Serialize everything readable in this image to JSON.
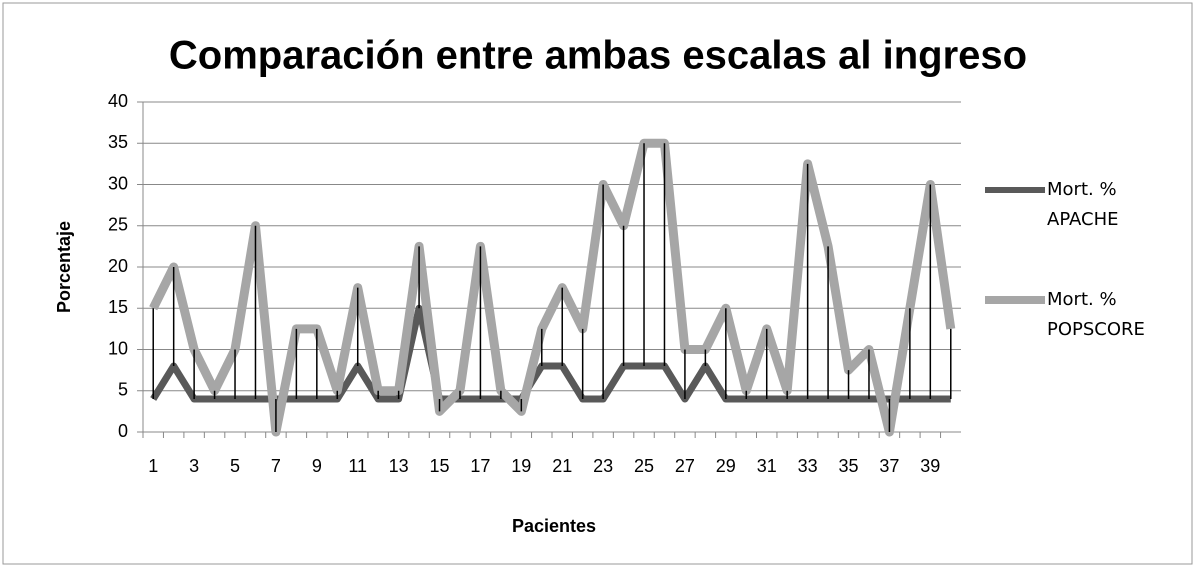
{
  "chart_data": {
    "type": "line",
    "title": "Comparación entre ambas escalas al ingreso",
    "x_label": "Pacientes",
    "y_label": "Porcentaje",
    "categories": [
      1,
      null,
      3,
      null,
      5,
      null,
      7,
      null,
      9,
      null,
      11,
      null,
      13,
      null,
      15,
      null,
      17,
      null,
      19,
      null,
      21,
      null,
      23,
      null,
      25,
      null,
      27,
      null,
      29,
      null,
      31,
      null,
      33,
      null,
      35,
      null,
      37,
      null,
      39,
      null
    ],
    "series": [
      {
        "name": "Mort. % APACHE",
        "color": "#595959",
        "values": [
          4,
          8,
          4,
          4,
          4,
          4,
          4,
          4,
          4,
          4,
          8,
          4,
          4,
          15,
          4,
          4,
          4,
          4,
          4,
          8,
          8,
          4,
          4,
          8,
          8,
          8,
          4,
          8,
          4,
          4,
          4,
          4,
          4,
          4,
          4,
          4,
          4,
          4,
          4,
          4
        ]
      },
      {
        "name": "Mort. % POPSCORE",
        "color": "#a6a6a6",
        "values": [
          15,
          20,
          10,
          5,
          10,
          25,
          0,
          12.5,
          12.5,
          5,
          17.5,
          5,
          5,
          22.5,
          2.5,
          5,
          22.5,
          5,
          2.5,
          12.5,
          17.5,
          12.5,
          30,
          25,
          35,
          35,
          10,
          10,
          15,
          5,
          12.5,
          5,
          32.5,
          22.5,
          7.5,
          10,
          0,
          15,
          30,
          12.5
        ]
      }
    ],
    "ylim": [
      0,
      40
    ],
    "yticks": [
      0,
      5,
      10,
      15,
      20,
      25,
      30,
      35,
      40
    ],
    "grid": true,
    "high_low_lines": true,
    "legend": "right"
  }
}
